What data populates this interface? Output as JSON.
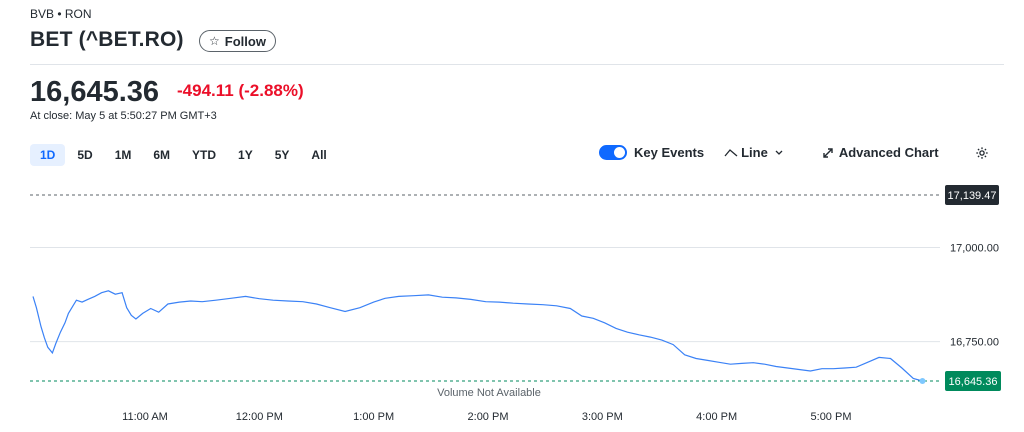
{
  "header": {
    "exchange": "BVB • RON",
    "title": "BET (^BET.RO)",
    "follow_label": "Follow",
    "follow_icon": "star-outline-icon"
  },
  "quote": {
    "price": "16,645.36",
    "change": "-494.11 (-2.88%)",
    "close_time": "At close: May 5 at 5:50:27 PM GMT+3",
    "change_color": "#eb0f29"
  },
  "range_tabs": [
    "1D",
    "5D",
    "1M",
    "6M",
    "YTD",
    "1Y",
    "5Y",
    "All"
  ],
  "active_range": "1D",
  "toolbar": {
    "key_events_label": "Key Events",
    "key_events_on": true,
    "chart_type_label": "Line",
    "advanced_chart_label": "Advanced Chart",
    "settings_icon": "gear-icon"
  },
  "footer_note": "Volume Not Available",
  "chart_data": {
    "type": "line",
    "x_labels": [
      "11:00 AM",
      "12:00 PM",
      "1:00 PM",
      "2:00 PM",
      "3:00 PM",
      "4:00 PM",
      "5:00 PM"
    ],
    "y_tick_labels": [
      "17,000.00",
      "16,750.00"
    ],
    "y_ticks": [
      17000,
      16750
    ],
    "ylim": [
      16600,
      17160
    ],
    "xlim_hours": [
      10.0,
      17.9
    ],
    "previous_close": 17139.47,
    "previous_close_label": "17,139.47",
    "last_value": 16645.36,
    "last_value_label": "16,645.36",
    "line_color": "#3b82f6",
    "series": [
      {
        "values": [
          [
            10.02,
            16870
          ],
          [
            10.05,
            16840
          ],
          [
            10.09,
            16790
          ],
          [
            10.12,
            16760
          ],
          [
            10.15,
            16735
          ],
          [
            10.19,
            16720
          ],
          [
            10.22,
            16745
          ],
          [
            10.26,
            16775
          ],
          [
            10.3,
            16800
          ],
          [
            10.33,
            16825
          ],
          [
            10.37,
            16845
          ],
          [
            10.4,
            16860
          ],
          [
            10.45,
            16855
          ],
          [
            10.5,
            16862
          ],
          [
            10.56,
            16870
          ],
          [
            10.62,
            16880
          ],
          [
            10.68,
            16885
          ],
          [
            10.74,
            16876
          ],
          [
            10.8,
            16880
          ],
          [
            10.84,
            16840
          ],
          [
            10.88,
            16820
          ],
          [
            10.92,
            16810
          ],
          [
            10.98,
            16825
          ],
          [
            11.05,
            16838
          ],
          [
            11.12,
            16828
          ],
          [
            11.2,
            16850
          ],
          [
            11.3,
            16855
          ],
          [
            11.4,
            16858
          ],
          [
            11.5,
            16856
          ],
          [
            11.62,
            16860
          ],
          [
            11.75,
            16865
          ],
          [
            11.88,
            16870
          ],
          [
            12.0,
            16864
          ],
          [
            12.12,
            16860
          ],
          [
            12.25,
            16858
          ],
          [
            12.38,
            16856
          ],
          [
            12.5,
            16850
          ],
          [
            12.62,
            16840
          ],
          [
            12.75,
            16830
          ],
          [
            12.88,
            16840
          ],
          [
            13.0,
            16855
          ],
          [
            13.1,
            16865
          ],
          [
            13.22,
            16870
          ],
          [
            13.35,
            16872
          ],
          [
            13.48,
            16874
          ],
          [
            13.6,
            16868
          ],
          [
            13.72,
            16866
          ],
          [
            13.85,
            16862
          ],
          [
            13.98,
            16856
          ],
          [
            14.1,
            16855
          ],
          [
            14.22,
            16852
          ],
          [
            14.35,
            16850
          ],
          [
            14.48,
            16848
          ],
          [
            14.6,
            16845
          ],
          [
            14.72,
            16838
          ],
          [
            14.82,
            16818
          ],
          [
            14.92,
            16812
          ],
          [
            15.02,
            16800
          ],
          [
            15.12,
            16785
          ],
          [
            15.22,
            16775
          ],
          [
            15.32,
            16768
          ],
          [
            15.42,
            16762
          ],
          [
            15.52,
            16754
          ],
          [
            15.62,
            16742
          ],
          [
            15.72,
            16715
          ],
          [
            15.82,
            16705
          ],
          [
            15.92,
            16700
          ],
          [
            16.02,
            16695
          ],
          [
            16.12,
            16690
          ],
          [
            16.22,
            16692
          ],
          [
            16.32,
            16694
          ],
          [
            16.42,
            16690
          ],
          [
            16.52,
            16684
          ],
          [
            16.62,
            16680
          ],
          [
            16.72,
            16676
          ],
          [
            16.82,
            16672
          ],
          [
            16.92,
            16678
          ],
          [
            17.02,
            16678
          ],
          [
            17.12,
            16680
          ],
          [
            17.22,
            16682
          ],
          [
            17.32,
            16695
          ],
          [
            17.42,
            16708
          ],
          [
            17.52,
            16705
          ],
          [
            17.62,
            16680
          ],
          [
            17.72,
            16652
          ],
          [
            17.8,
            16645.36
          ]
        ]
      }
    ]
  }
}
